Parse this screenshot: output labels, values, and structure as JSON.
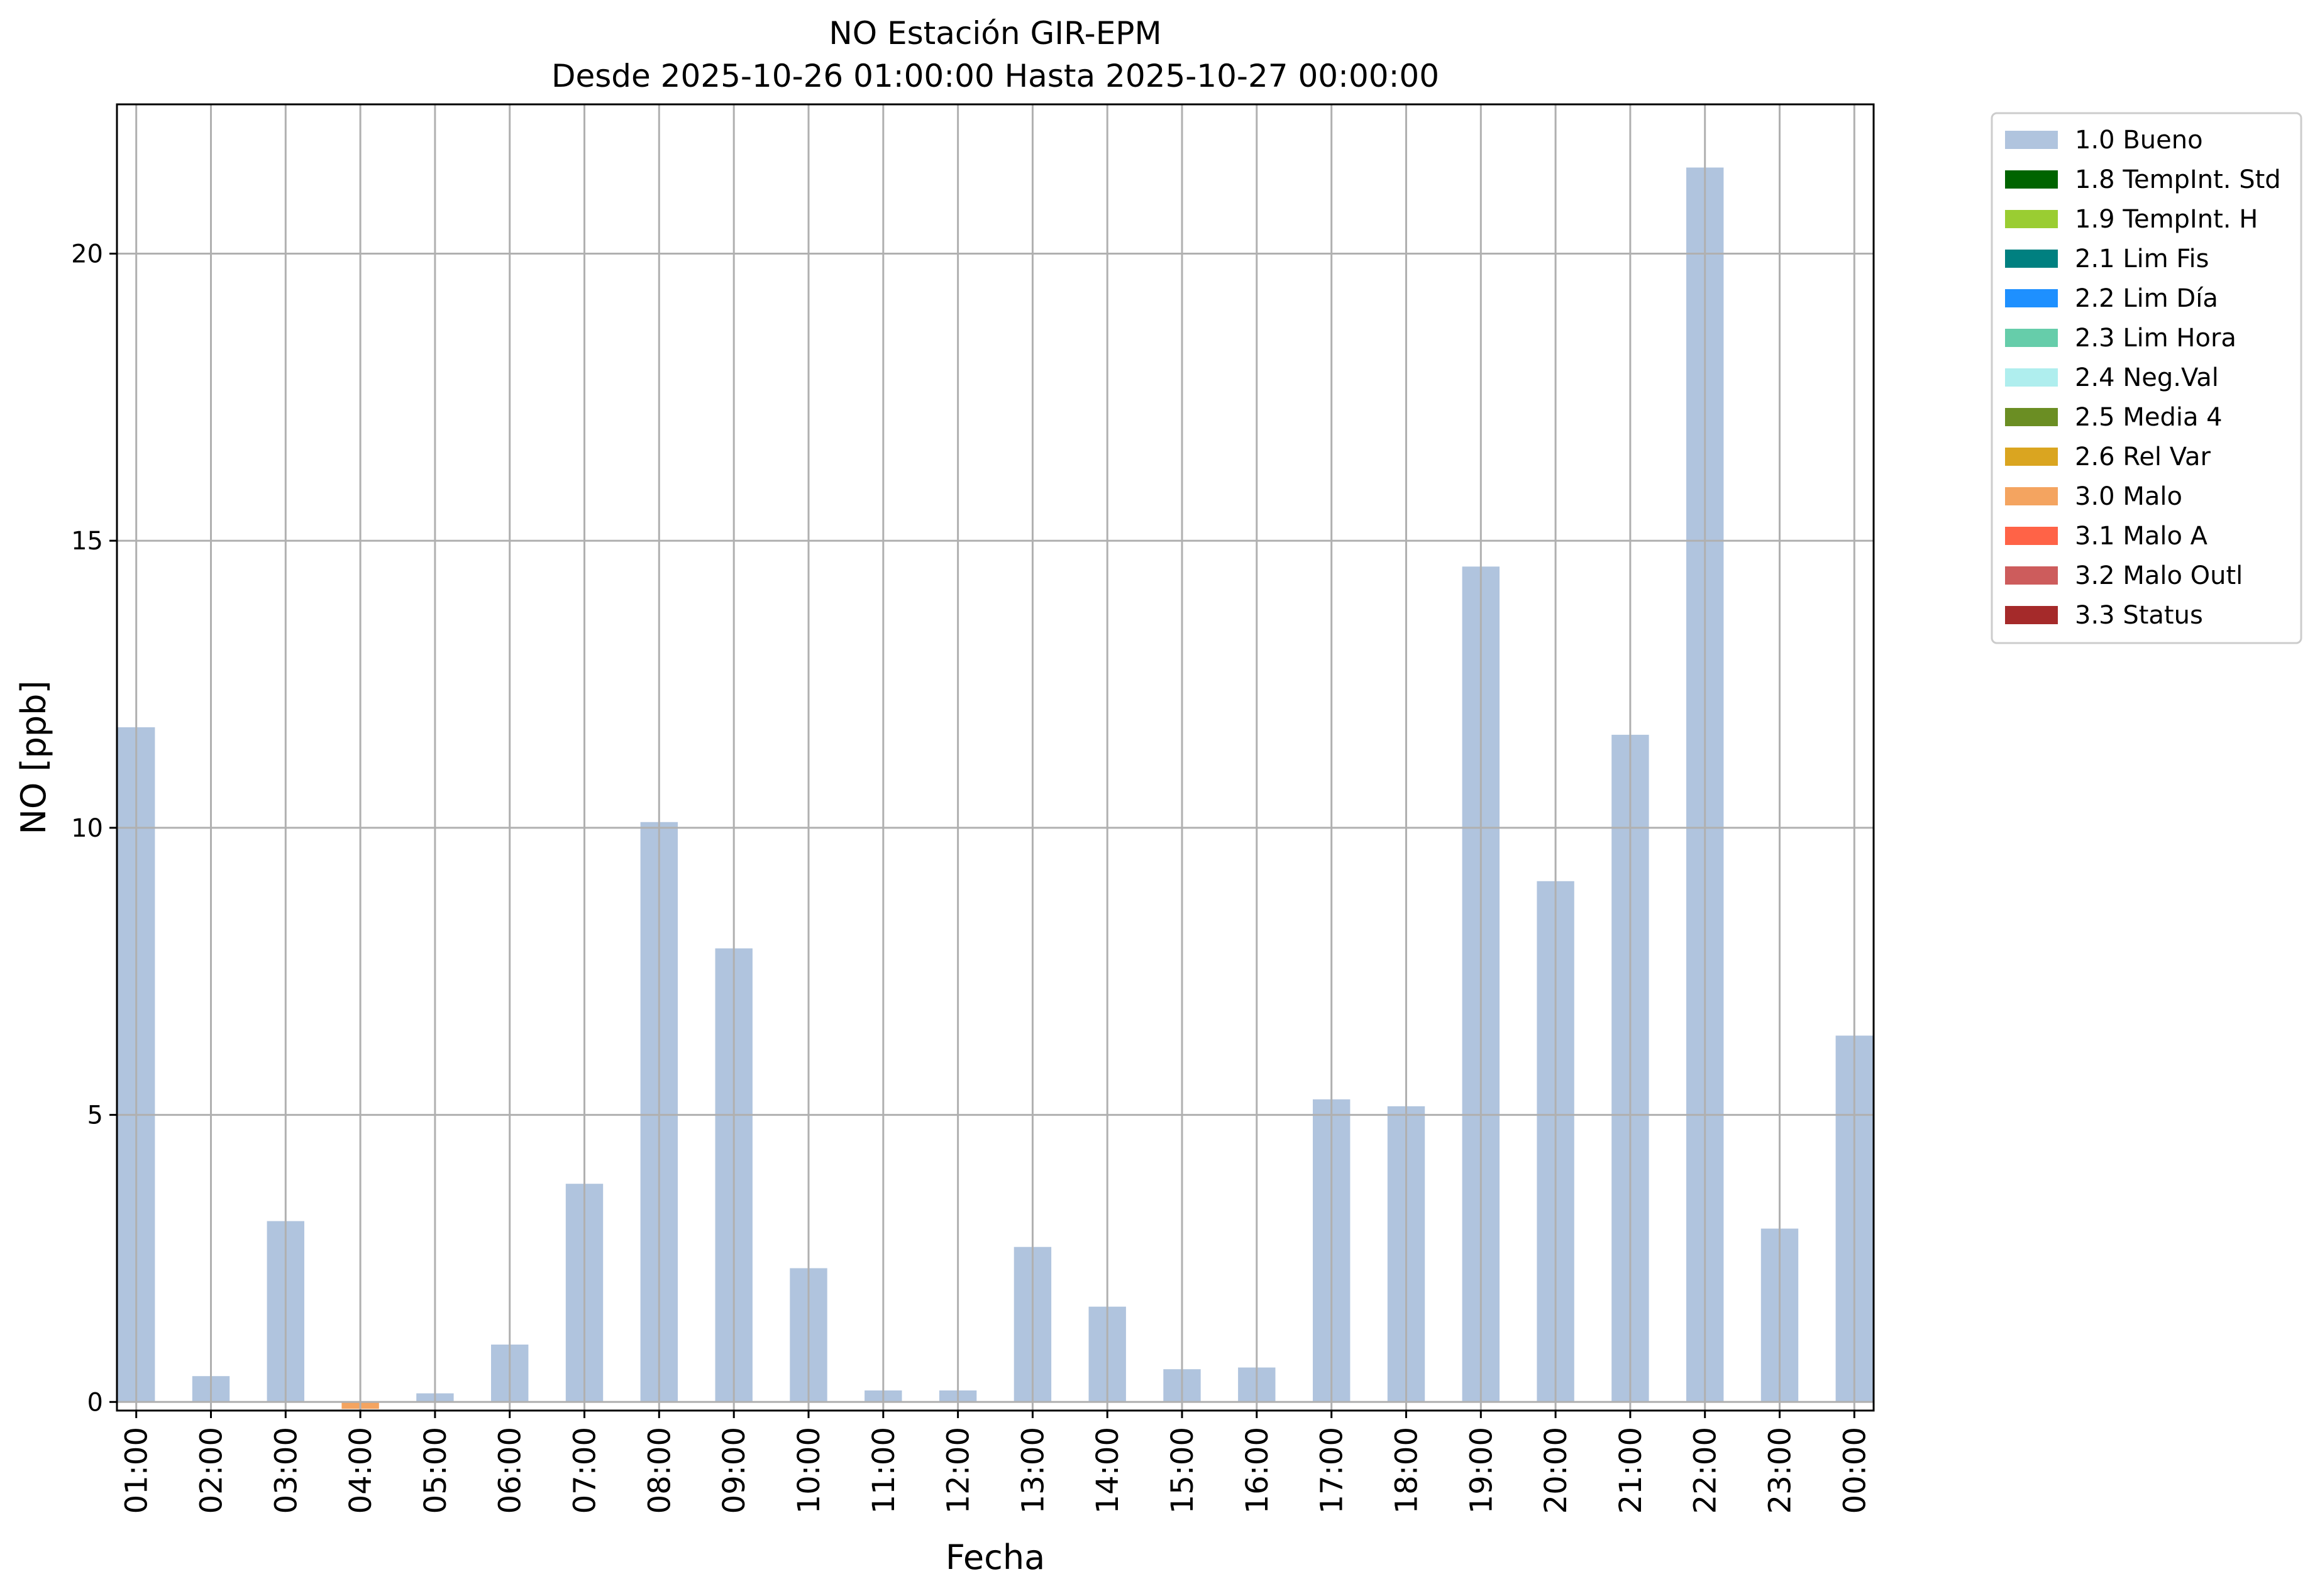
{
  "chart_data": {
    "type": "bar",
    "title": "NO Estación GIR-EPM",
    "subtitle": "Desde 2025-10-26 01:00:00 Hasta 2025-10-27 00:00:00",
    "xlabel": "Fecha",
    "ylabel": "NO [ppb]",
    "ylim": [
      -0.15,
      22.6
    ],
    "yticks": [
      0,
      5,
      10,
      15,
      20
    ],
    "grid": true,
    "stacked": true,
    "legend_position": "outside-top-right",
    "categories": [
      "01:00",
      "02:00",
      "03:00",
      "04:00",
      "05:00",
      "06:00",
      "07:00",
      "08:00",
      "09:00",
      "10:00",
      "11:00",
      "12:00",
      "13:00",
      "14:00",
      "15:00",
      "16:00",
      "17:00",
      "18:00",
      "19:00",
      "20:00",
      "21:00",
      "22:00",
      "23:00",
      "00:00"
    ],
    "series": [
      {
        "name": "1.0 Bueno",
        "color": "#b0c4de",
        "values": [
          11.75,
          0.45,
          3.15,
          0,
          0.15,
          1.0,
          3.8,
          10.1,
          7.9,
          2.33,
          0.2,
          0.2,
          2.7,
          1.66,
          0.57,
          0.6,
          5.27,
          5.15,
          14.55,
          9.07,
          11.62,
          21.5,
          3.02,
          6.38
        ]
      },
      {
        "name": "1.8 TempInt. Std",
        "color": "#006400",
        "values": [
          0,
          0,
          0,
          0,
          0,
          0,
          0,
          0,
          0,
          0,
          0,
          0,
          0,
          0,
          0,
          0,
          0,
          0,
          0,
          0,
          0,
          0,
          0,
          0
        ]
      },
      {
        "name": "1.9 TempInt. H",
        "color": "#9acd32",
        "values": [
          0,
          0,
          0,
          0,
          0,
          0,
          0,
          0,
          0,
          0,
          0,
          0,
          0,
          0,
          0,
          0,
          0,
          0,
          0,
          0,
          0,
          0,
          0,
          0
        ]
      },
      {
        "name": "2.1 Lim Fis",
        "color": "#008080",
        "values": [
          0,
          0,
          0,
          0,
          0,
          0,
          0,
          0,
          0,
          0,
          0,
          0,
          0,
          0,
          0,
          0,
          0,
          0,
          0,
          0,
          0,
          0,
          0,
          0
        ]
      },
      {
        "name": "2.2 Lim Día",
        "color": "#1e90ff",
        "values": [
          0,
          0,
          0,
          0,
          0,
          0,
          0,
          0,
          0,
          0,
          0,
          0,
          0,
          0,
          0,
          0,
          0,
          0,
          0,
          0,
          0,
          0,
          0,
          0
        ]
      },
      {
        "name": "2.3 Lim Hora",
        "color": "#66cdaa",
        "values": [
          0,
          0,
          0,
          0,
          0,
          0,
          0,
          0,
          0,
          0,
          0,
          0,
          0,
          0,
          0,
          0,
          0,
          0,
          0,
          0,
          0,
          0,
          0,
          0
        ]
      },
      {
        "name": "2.4 Neg.Val",
        "color": "#afeeee",
        "values": [
          0,
          0,
          0,
          0,
          0,
          0,
          0,
          0,
          0,
          0,
          0,
          0,
          0,
          0,
          0,
          0,
          0,
          0,
          0,
          0,
          0,
          0,
          0,
          0
        ]
      },
      {
        "name": "2.5 Media 4",
        "color": "#6b8e23",
        "values": [
          0,
          0,
          0,
          0,
          0,
          0,
          0,
          0,
          0,
          0,
          0,
          0,
          0,
          0,
          0,
          0,
          0,
          0,
          0,
          0,
          0,
          0,
          0,
          0
        ]
      },
      {
        "name": "2.6 Rel Var",
        "color": "#daa520",
        "values": [
          0,
          0,
          0,
          0,
          0,
          0,
          0,
          0,
          0,
          0,
          0,
          0,
          0,
          0,
          0,
          0,
          0,
          0,
          0,
          0,
          0,
          0,
          0,
          0
        ]
      },
      {
        "name": "3.0 Malo",
        "color": "#f4a460",
        "values": [
          0,
          0,
          0,
          -0.12,
          0,
          0,
          0,
          0,
          0,
          0,
          0,
          0,
          0,
          0,
          0,
          0,
          0,
          0,
          0,
          0,
          0,
          0,
          0,
          0
        ]
      },
      {
        "name": "3.1 Malo A",
        "color": "#ff6347",
        "values": [
          0,
          0,
          0,
          0,
          0,
          0,
          0,
          0,
          0,
          0,
          0,
          0,
          0,
          0,
          0,
          0,
          0,
          0,
          0,
          0,
          0,
          0,
          0,
          0
        ]
      },
      {
        "name": "3.2 Malo Outl",
        "color": "#cd5c5c",
        "values": [
          0,
          0,
          0,
          0,
          0,
          0,
          0,
          0,
          0,
          0,
          0,
          0,
          0,
          0,
          0,
          0,
          0,
          0,
          0,
          0,
          0,
          0,
          0,
          0
        ]
      },
      {
        "name": "3.3 Status",
        "color": "#a52a2a",
        "values": [
          0,
          0,
          0,
          0,
          0,
          0,
          0,
          0,
          0,
          0,
          0,
          0,
          0,
          0,
          0,
          0,
          0,
          0,
          0,
          0,
          0,
          0,
          0,
          0
        ]
      }
    ]
  }
}
